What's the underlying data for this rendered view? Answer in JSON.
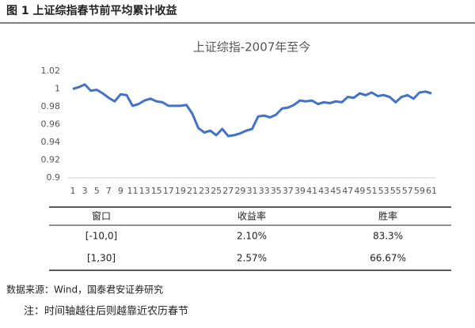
{
  "figure_title": "图 1 上证综指春节前平均累计收益",
  "chart_data": {
    "type": "line",
    "title": "上证综指-2007年至今",
    "x": [
      1,
      2,
      3,
      4,
      5,
      6,
      7,
      8,
      9,
      10,
      11,
      12,
      13,
      14,
      15,
      16,
      17,
      18,
      19,
      20,
      21,
      22,
      23,
      24,
      25,
      26,
      27,
      28,
      29,
      30,
      31,
      32,
      33,
      34,
      35,
      36,
      37,
      38,
      39,
      40,
      41,
      42,
      43,
      44,
      45,
      46,
      47,
      48,
      49,
      50,
      51,
      52,
      53,
      54,
      55,
      56,
      57,
      58,
      59,
      60,
      61
    ],
    "series": [
      {
        "color": "#4472c4",
        "values": [
          1.0,
          1.002,
          1.005,
          0.998,
          0.999,
          0.995,
          0.99,
          0.986,
          0.994,
          0.993,
          0.981,
          0.983,
          0.987,
          0.989,
          0.986,
          0.985,
          0.981,
          0.981,
          0.981,
          0.982,
          0.972,
          0.956,
          0.951,
          0.953,
          0.948,
          0.955,
          0.947,
          0.948,
          0.95,
          0.953,
          0.955,
          0.969,
          0.97,
          0.968,
          0.971,
          0.978,
          0.979,
          0.982,
          0.987,
          0.986,
          0.987,
          0.983,
          0.985,
          0.984,
          0.986,
          0.985,
          0.991,
          0.99,
          0.995,
          0.993,
          0.996,
          0.992,
          0.993,
          0.991,
          0.985,
          0.991,
          0.993,
          0.989,
          0.996,
          0.997,
          0.995
        ]
      }
    ],
    "xlim": [
      1,
      61
    ],
    "xticks": [
      1,
      3,
      5,
      7,
      9,
      11,
      13,
      15,
      17,
      19,
      21,
      23,
      25,
      27,
      29,
      31,
      33,
      35,
      37,
      39,
      41,
      43,
      45,
      47,
      49,
      51,
      53,
      55,
      57,
      59,
      61
    ],
    "ylim": [
      0.9,
      1.02
    ],
    "yticks": [
      0.9,
      0.92,
      0.94,
      0.96,
      0.98,
      1,
      1.02
    ],
    "grid": false
  },
  "table": {
    "header": [
      "窗口",
      "收益率",
      "胜率"
    ],
    "rows": [
      [
        "[-10,0]",
        "2.10%",
        "83.3%"
      ],
      [
        "[1,30]",
        "2.57%",
        "66.67%"
      ]
    ]
  },
  "source": "数据来源：Wind，国泰君安证券研究",
  "note": "注：时间轴越往后则越靠近农历春节"
}
